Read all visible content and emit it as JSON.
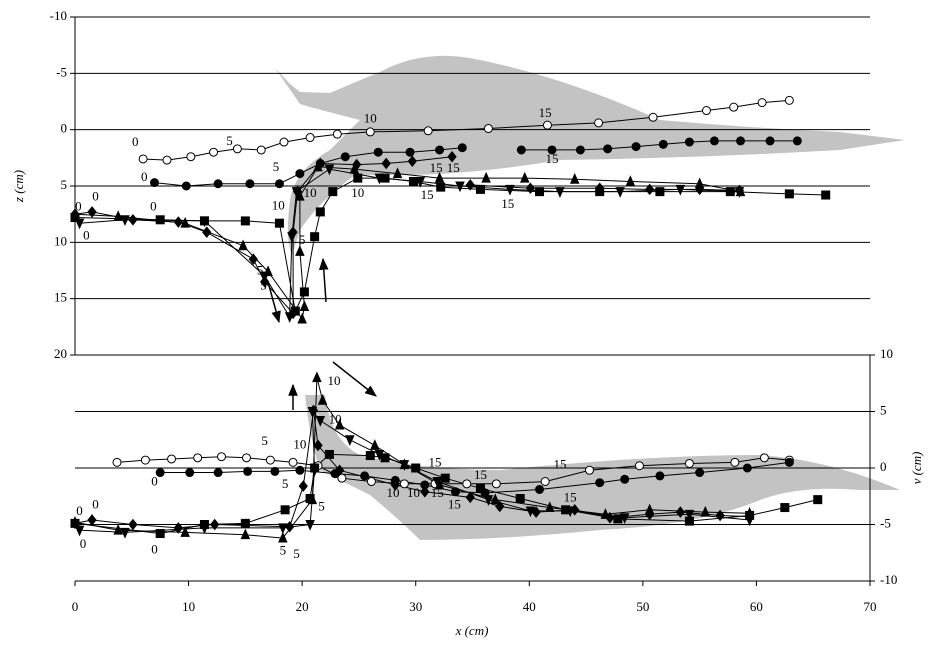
{
  "chart_data": [
    {
      "type": "line",
      "ylabel": "z (cm)",
      "xlim": [
        0,
        70
      ],
      "ylim": [
        20,
        -10
      ],
      "yticks": [
        -10,
        -5,
        0,
        5,
        10,
        15,
        20
      ],
      "grid": true,
      "series": [
        {
          "marker": "circle-open",
          "color": "#000000",
          "x": [
            6.0,
            8.1,
            10.2,
            12.2,
            14.3,
            16.4,
            18.4,
            20.7,
            23.1,
            26.0,
            31.1,
            36.4,
            41.6,
            46.1,
            50.9,
            55.6,
            58.0,
            60.5,
            62.9
          ],
          "values": [
            2.6,
            2.7,
            2.4,
            2.0,
            1.7,
            1.8,
            1.1,
            0.7,
            0.4,
            0.2,
            0.1,
            -0.1,
            -0.4,
            -0.6,
            -1.1,
            -1.7,
            -2.0,
            -2.4,
            -2.6
          ]
        },
        {
          "marker": "circle",
          "color": "#000000",
          "x": [
            7.0,
            9.8,
            12.6,
            15.4,
            18.0,
            19.8,
            21.6,
            23.8,
            26.7,
            29.5,
            32.1,
            34.1,
            null,
            39.3,
            42.0,
            44.5,
            46.9,
            49.4,
            51.8,
            54.1,
            56.3,
            58.6,
            61.2,
            63.6
          ],
          "values": [
            4.7,
            5.0,
            4.8,
            4.8,
            4.8,
            3.9,
            3.0,
            2.4,
            2.0,
            2.0,
            1.8,
            1.6,
            null,
            1.8,
            1.8,
            1.8,
            1.7,
            1.5,
            1.3,
            1.1,
            1.0,
            1.0,
            1.0,
            1.0
          ]
        },
        {
          "marker": "diamond",
          "color": "#000000",
          "x": [
            0.0,
            1.5,
            5.1,
            9.1,
            11.6,
            15.7,
            16.7,
            19.2,
            19.2,
            19.6,
            21.6,
            24.8,
            27.4,
            29.7,
            33.2,
            null,
            34.8,
            40.1,
            46.2,
            50.6,
            55.0,
            58.5
          ],
          "values": [
            7.5,
            7.3,
            8.0,
            8.2,
            9.1,
            11.5,
            13.5,
            16.3,
            9.1,
            5.5,
            3.0,
            3.1,
            3.0,
            2.8,
            2.4,
            null,
            4.9,
            5.2,
            5.2,
            5.3,
            5.3,
            5.4
          ]
        },
        {
          "marker": "triangle",
          "color": "#000000",
          "x": [
            0.0,
            3.8,
            9.7,
            14.8,
            17.0,
            20.0,
            20.2,
            19.8,
            19.8,
            21.4,
            24.6,
            28.4,
            32.1,
            36.2,
            39.6,
            44.0,
            48.9,
            55.0,
            58.6
          ],
          "values": [
            7.5,
            7.7,
            8.3,
            10.3,
            12.6,
            16.8,
            15.7,
            10.8,
            5.9,
            3.3,
            3.5,
            3.9,
            4.3,
            4.3,
            4.3,
            4.4,
            4.6,
            4.8,
            5.5
          ]
        },
        {
          "marker": "triangle-down",
          "color": "#000000",
          "x": [
            0.4,
            4.4,
            11.4,
            16.7,
            18.9,
            19.1,
            19.5,
            22.4,
            26.8,
            30.4,
            33.9,
            38.3,
            42.7,
            48.0,
            53.3,
            58.5
          ],
          "values": [
            8.3,
            8.0,
            8.1,
            13.0,
            16.6,
            9.5,
            5.5,
            3.5,
            4.3,
            4.6,
            5.0,
            5.3,
            5.5,
            5.5,
            5.3,
            5.5
          ]
        },
        {
          "marker": "square",
          "color": "#000000",
          "x": [
            0.0,
            7.5,
            11.4,
            15.0,
            18.0,
            19.4,
            20.2,
            21.1,
            21.6,
            22.7,
            24.9,
            27.3,
            29.8,
            32.2,
            35.7,
            40.9,
            46.2,
            51.5,
            57.7,
            62.9,
            66.1
          ],
          "values": [
            7.8,
            8.0,
            8.1,
            8.1,
            8.3,
            16.1,
            14.4,
            9.5,
            7.3,
            5.5,
            4.3,
            4.3,
            4.6,
            5.1,
            5.3,
            5.5,
            5.5,
            5.5,
            5.5,
            5.7,
            5.8
          ]
        }
      ],
      "annotations": [
        {
          "text": "0",
          "x": 5.3,
          "y": 1.2
        },
        {
          "text": "5",
          "x": 13.6,
          "y": 1.1
        },
        {
          "text": "10",
          "x": 26.0,
          "y": -0.9
        },
        {
          "text": "15",
          "x": 41.4,
          "y": -1.4
        },
        {
          "text": "0",
          "x": 6.1,
          "y": 4.3
        },
        {
          "text": "5",
          "x": 17.7,
          "y": 3.4
        },
        {
          "text": "10",
          "x": 24.9,
          "y": 5.7
        },
        {
          "text": "15",
          "x": 42.0,
          "y": 2.7
        },
        {
          "text": "0",
          "x": 1.8,
          "y": 6.0
        },
        {
          "text": "0",
          "x": 0.3,
          "y": 6.9
        },
        {
          "text": "0",
          "x": 6.9,
          "y": 6.9
        },
        {
          "text": "0",
          "x": 1.0,
          "y": 9.5
        },
        {
          "text": "10",
          "x": 17.9,
          "y": 6.8
        },
        {
          "text": "10",
          "x": 20.7,
          "y": 5.7
        },
        {
          "text": "5",
          "x": 20.0,
          "y": 9.9
        },
        {
          "text": "5",
          "x": 16.3,
          "y": 12.6
        },
        {
          "text": "5",
          "x": 16.6,
          "y": 13.9
        },
        {
          "text": "15",
          "x": 31.8,
          "y": 3.5
        },
        {
          "text": "15",
          "x": 33.3,
          "y": 3.5
        },
        {
          "text": "15",
          "x": 31.0,
          "y": 5.9
        },
        {
          "text": "15",
          "x": 38.1,
          "y": 6.7
        }
      ]
    },
    {
      "type": "line",
      "ylabel": "v (cm)",
      "xlabel": "x (cm)",
      "xlim": [
        0,
        70
      ],
      "xticks": [
        0,
        10,
        20,
        30,
        40,
        50,
        60,
        70
      ],
      "ylim": [
        -10,
        10
      ],
      "yticks": [
        10,
        5,
        0,
        -5,
        -10
      ],
      "y_axis_side": "right",
      "grid": true,
      "series": [
        {
          "marker": "circle-open",
          "color": "#000000",
          "x": [
            3.7,
            6.2,
            8.5,
            10.8,
            12.9,
            15.1,
            17.2,
            19.2,
            21.4,
            23.5,
            26.1,
            29.0,
            31.7,
            34.5,
            37.1,
            41.4,
            45.3,
            49.7,
            54.1,
            58.1,
            60.7,
            62.9
          ],
          "values": [
            0.5,
            0.7,
            0.8,
            0.9,
            1.0,
            0.9,
            0.7,
            0.5,
            0.2,
            -0.9,
            -1.2,
            -1.4,
            -1.4,
            -1.4,
            -1.4,
            -1.2,
            -0.2,
            0.2,
            0.4,
            0.5,
            0.9,
            0.7
          ]
        },
        {
          "marker": "circle",
          "color": "#000000",
          "x": [
            7.5,
            10.1,
            12.6,
            15.2,
            17.6,
            19.8,
            22.9,
            25.5,
            28.2,
            30.8,
            33.5,
            36.1,
            40.9,
            46.2,
            48.4,
            51.5,
            55.0,
            59.2,
            62.9
          ],
          "values": [
            -0.4,
            -0.4,
            -0.4,
            -0.3,
            -0.3,
            -0.2,
            -0.5,
            -0.7,
            -1.1,
            -1.5,
            -2.1,
            -2.2,
            -1.9,
            -1.3,
            -1.0,
            -0.7,
            -0.4,
            0.0,
            0.5
          ]
        },
        {
          "marker": "diamond",
          "color": "#000000",
          "x": [
            0.0,
            1.5,
            5.1,
            9.1,
            12.3,
            18.9,
            20.1,
            21.0,
            21.4,
            23.3,
            28.2,
            30.8,
            34.8,
            37.4,
            40.6,
            44.0,
            47.1,
            50.6,
            53.3,
            56.8,
            59.4
          ],
          "values": [
            -4.9,
            -4.6,
            -5.0,
            -5.3,
            -5.0,
            -5.2,
            -1.6,
            5.1,
            2.0,
            -0.2,
            -1.5,
            -2.1,
            -2.6,
            -3.4,
            -3.9,
            -3.7,
            -4.4,
            -4.1,
            -3.9,
            -4.2,
            -4.3
          ]
        },
        {
          "marker": "triangle",
          "color": "#000000",
          "x": [
            0.0,
            3.8,
            9.7,
            15.0,
            18.3,
            20.9,
            21.3,
            21.8,
            23.3,
            26.4,
            29.0,
            32.1,
            37.0,
            41.8,
            46.7,
            50.6,
            55.5,
            59.4
          ],
          "values": [
            -4.8,
            -5.5,
            -5.7,
            -5.9,
            -6.2,
            -2.8,
            8.0,
            6.0,
            3.8,
            2.0,
            0.3,
            -1.5,
            -2.8,
            -3.5,
            -4.1,
            -3.7,
            -3.9,
            -4.0
          ]
        },
        {
          "marker": "triangle-down",
          "color": "#000000",
          "x": [
            0.4,
            4.4,
            11.4,
            18.3,
            20.7,
            21.1,
            20.9,
            21.6,
            24.2,
            26.8,
            29.0,
            31.9,
            36.4,
            40.1,
            43.6,
            48.4,
            54.1,
            59.4
          ],
          "values": [
            -5.5,
            -5.7,
            -5.3,
            -5.3,
            -5.0,
            -0.2,
            5.0,
            4.2,
            2.5,
            1.2,
            0.3,
            -1.2,
            -2.8,
            -3.8,
            -3.8,
            -4.4,
            -4.1,
            -4.6
          ]
        },
        {
          "marker": "square",
          "color": "#000000",
          "x": [
            0.0,
            7.5,
            11.4,
            15.0,
            18.5,
            20.7,
            21.1,
            22.4,
            26.0,
            27.3,
            30.0,
            32.6,
            35.7,
            39.2,
            43.2,
            47.8,
            54.1,
            59.4,
            62.5,
            65.4
          ],
          "values": [
            -4.9,
            -5.8,
            -5.0,
            -4.9,
            -3.7,
            -2.7,
            0.0,
            1.2,
            1.1,
            0.9,
            0.0,
            -0.9,
            -1.8,
            -2.7,
            -3.7,
            -4.5,
            -4.7,
            -4.2,
            -3.5,
            -2.8
          ]
        }
      ],
      "annotations": [
        {
          "text": "10",
          "x": 22.8,
          "y": 7.6
        },
        {
          "text": "10",
          "x": 22.9,
          "y": 4.2
        },
        {
          "text": "10",
          "x": 19.8,
          "y": 2.0
        },
        {
          "text": "5",
          "x": 16.7,
          "y": 2.3
        },
        {
          "text": "0",
          "x": 7.0,
          "y": -1.3
        },
        {
          "text": "5",
          "x": 18.5,
          "y": -1.5
        },
        {
          "text": "10",
          "x": 28.0,
          "y": -2.3
        },
        {
          "text": "10",
          "x": 29.8,
          "y": -2.3
        },
        {
          "text": "15",
          "x": 31.7,
          "y": 0.4
        },
        {
          "text": "15",
          "x": 35.7,
          "y": -0.7
        },
        {
          "text": "15",
          "x": 31.9,
          "y": -2.3
        },
        {
          "text": "15",
          "x": 33.4,
          "y": -3.3
        },
        {
          "text": "15",
          "x": 42.7,
          "y": 0.2
        },
        {
          "text": "15",
          "x": 43.6,
          "y": -2.7
        },
        {
          "text": "0",
          "x": 1.8,
          "y": -3.3
        },
        {
          "text": "0",
          "x": 0.4,
          "y": -3.9
        },
        {
          "text": "0",
          "x": 0.7,
          "y": -6.8
        },
        {
          "text": "0",
          "x": 7.0,
          "y": -7.3
        },
        {
          "text": "5",
          "x": 21.7,
          "y": -3.5
        },
        {
          "text": "5",
          "x": 18.3,
          "y": -7.4
        },
        {
          "text": "5",
          "x": 19.5,
          "y": -7.7
        }
      ]
    }
  ]
}
